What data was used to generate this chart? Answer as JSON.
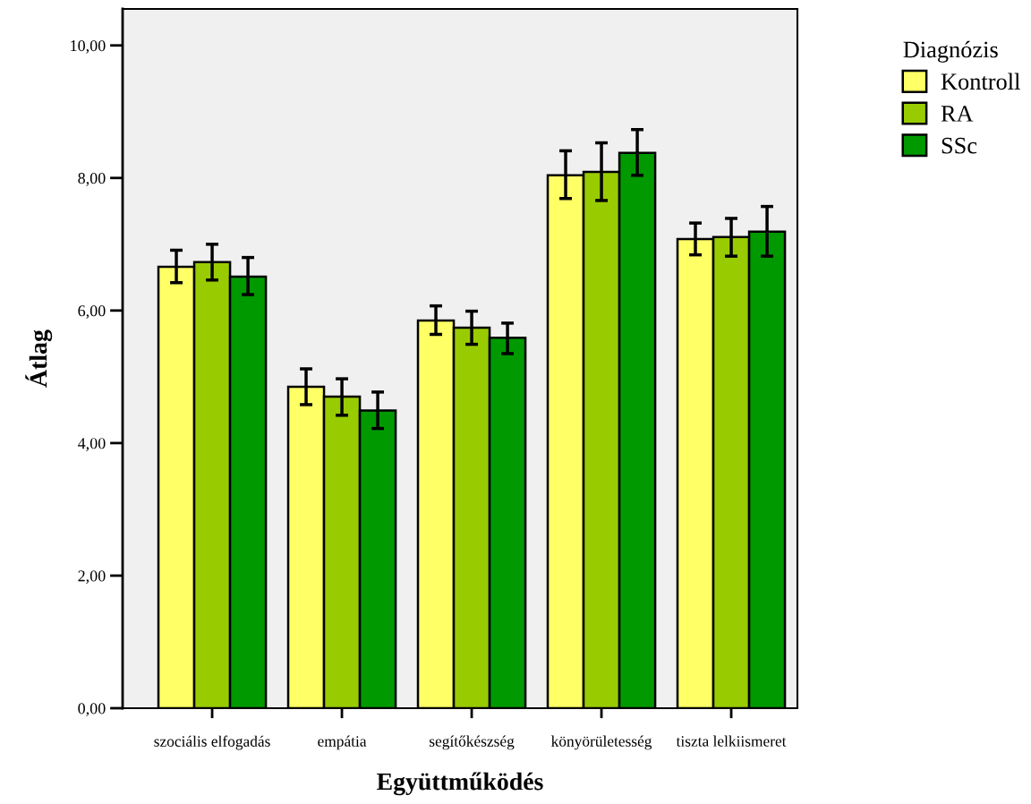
{
  "chart_data": {
    "type": "bar",
    "xlabel": "Együttműködés",
    "ylabel": "Átlag",
    "legend_title": "Diagnózis",
    "categories": [
      "szociális elfogadás",
      "empátia",
      "segítőkészség",
      "könyörületesség",
      "tiszta lelkiismeret"
    ],
    "series": [
      {
        "name": "Kontroll",
        "color": "#ffff66",
        "values": [
          6.66,
          4.85,
          5.85,
          8.04,
          7.08
        ],
        "errors": [
          [
            6.42,
            6.91
          ],
          [
            4.58,
            5.12
          ],
          [
            5.64,
            6.07
          ],
          [
            7.69,
            8.41
          ],
          [
            6.84,
            7.32
          ]
        ]
      },
      {
        "name": "RA",
        "color": "#99cc00",
        "values": [
          6.73,
          4.7,
          5.74,
          8.09,
          7.11
        ],
        "errors": [
          [
            6.46,
            7.0
          ],
          [
            4.42,
            4.97
          ],
          [
            5.49,
            5.99
          ],
          [
            7.66,
            8.53
          ],
          [
            6.82,
            7.39
          ]
        ]
      },
      {
        "name": "SSc",
        "color": "#009900",
        "values": [
          6.51,
          4.49,
          5.59,
          8.38,
          7.19
        ],
        "errors": [
          [
            6.24,
            6.8
          ],
          [
            4.22,
            4.77
          ],
          [
            5.35,
            5.81
          ],
          [
            8.04,
            8.73
          ],
          [
            6.82,
            7.57
          ]
        ]
      }
    ],
    "ylim": [
      0,
      10.55
    ],
    "yticks": [
      {
        "value": 0,
        "label": "0,00"
      },
      {
        "value": 2,
        "label": "2,00"
      },
      {
        "value": 4,
        "label": "4,00"
      },
      {
        "value": 6,
        "label": "6,00"
      },
      {
        "value": 8,
        "label": "8,00"
      },
      {
        "value": 10,
        "label": "10,00"
      }
    ],
    "grid": false,
    "legend": "top right"
  }
}
